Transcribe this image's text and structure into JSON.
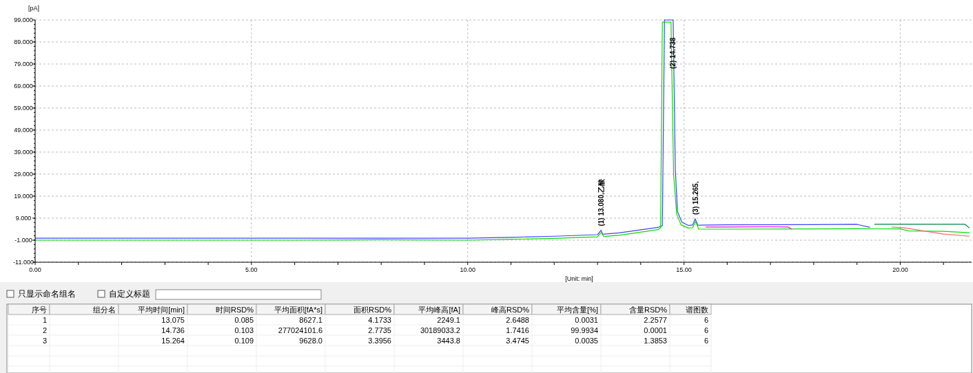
{
  "chart_data": [
    {
      "type": "line",
      "xlabel": "[Unit: min]",
      "ylabel": "[pA]",
      "series": [
        {
          "color": "#4040ff",
          "x": [
            0,
            2,
            4,
            6,
            8,
            10,
            11,
            12,
            13,
            13.05,
            13.08,
            13.12,
            13.5,
            14.4,
            14.5,
            14.55,
            14.75,
            14.8,
            14.85,
            14.95,
            15.1,
            15.2,
            15.26,
            15.32,
            16,
            18,
            19,
            19.3
          ],
          "values": [
            -0.1,
            -0.1,
            -0.1,
            -0.1,
            -0.1,
            -0.1,
            0.3,
            0.8,
            1.5,
            2.6,
            3.5,
            1.7,
            2.3,
            4.8,
            5.6,
            99,
            99,
            31,
            12,
            7.2,
            5.7,
            5.9,
            8.7,
            5.8,
            6.0,
            6.1,
            6.2,
            4.8
          ]
        },
        {
          "color": "#00e000",
          "x": [
            0,
            2,
            4,
            6,
            8,
            10,
            11,
            12,
            13,
            13.05,
            13.09,
            13.14,
            13.5,
            14.4,
            14.46,
            14.5,
            14.7,
            14.76,
            14.83,
            14.93,
            15.1,
            15.2,
            15.27,
            15.34,
            16,
            18,
            19,
            20,
            20.2,
            21,
            21.6
          ],
          "values": [
            -1.0,
            -1.0,
            -1.0,
            -1.0,
            -0.8,
            -1.0,
            -0.6,
            -0.2,
            0.5,
            1.6,
            2.5,
            0.7,
            1.2,
            3.8,
            4.6,
            98,
            98,
            29,
            11,
            6,
            4.5,
            4.7,
            7.6,
            4.0,
            4.0,
            4.1,
            4.2,
            4.1,
            3.2,
            3.0,
            2.4
          ]
        },
        {
          "color": "#ff00ff",
          "x": [
            15.5,
            16,
            17,
            17.4,
            17.5
          ],
          "values": [
            5.0,
            5.0,
            5.1,
            5.0,
            4.0
          ]
        },
        {
          "color": "#008040",
          "x": [
            19.4,
            20,
            21,
            21.5,
            21.6
          ],
          "values": [
            6.2,
            6.2,
            6.2,
            6.2,
            4.5
          ]
        },
        {
          "color": "#ff6666",
          "x": [
            19.8,
            20.1,
            21,
            21.6
          ],
          "values": [
            5.0,
            4.6,
            1.8,
            0.8
          ]
        }
      ],
      "xlim": [
        0,
        21.65
      ],
      "xticks": [
        {
          "value": 0,
          "label": "0.00"
        },
        {
          "value": 1,
          "label": null
        },
        {
          "value": 2,
          "label": null
        },
        {
          "value": 3,
          "label": null
        },
        {
          "value": 4,
          "label": null
        },
        {
          "value": 5,
          "label": "5.00"
        },
        {
          "value": 6,
          "label": null
        },
        {
          "value": 7,
          "label": null
        },
        {
          "value": 8,
          "label": null
        },
        {
          "value": 9,
          "label": null
        },
        {
          "value": 10,
          "label": "10.00"
        },
        {
          "value": 11,
          "label": null
        },
        {
          "value": 12,
          "label": null
        },
        {
          "value": 13,
          "label": null
        },
        {
          "value": 14,
          "label": null
        },
        {
          "value": 15,
          "label": "15.00"
        },
        {
          "value": 16,
          "label": null
        },
        {
          "value": 17,
          "label": null
        },
        {
          "value": 18,
          "label": null
        },
        {
          "value": 19,
          "label": null
        },
        {
          "value": 20,
          "label": "20.00"
        },
        {
          "value": 21,
          "label": null
        }
      ],
      "ylim": [
        -11,
        99
      ],
      "yticks": [
        {
          "value": -11,
          "label": "-11.000"
        },
        {
          "value": -1,
          "label": "-1.000"
        },
        {
          "value": 9,
          "label": "9.000"
        },
        {
          "value": 19,
          "label": "19.000"
        },
        {
          "value": 29,
          "label": "29.000"
        },
        {
          "value": 39,
          "label": "39.000"
        },
        {
          "value": 49,
          "label": "49.000"
        },
        {
          "value": 59,
          "label": "59.000"
        },
        {
          "value": 69,
          "label": "69.000"
        },
        {
          "value": 79,
          "label": "79.000"
        },
        {
          "value": 89,
          "label": "89.000"
        },
        {
          "value": 99,
          "label": "99.000"
        }
      ],
      "grid": true,
      "annotations": [
        {
          "text": "(1) 13.080,乙酸",
          "x": 13.08,
          "y": 3.5
        },
        {
          "text": "(2) 14.738",
          "x": 14.738,
          "y": 99
        },
        {
          "text": "(3) 15.265,",
          "x": 15.265,
          "y": 8.7
        }
      ]
    },
    {
      "type": "other",
      "annotations": [
        "只显示命名组名",
        "自定义标题"
      ],
      "categories": [
        "序号",
        "组分名",
        "平均时间[min]",
        "时间RSD%",
        "平均面积[fA*s]",
        "面积RSD%",
        "平均峰高[fA]",
        "峰高RSD%",
        "平均含量[%]",
        "含量RSD%",
        "谱图数"
      ],
      "cell_labels": [
        [
          "1",
          null,
          "13.075",
          "0.085",
          "8627.1",
          "4.1733",
          "2249.1",
          "2.6488",
          "0.0031",
          "2.2577",
          "6"
        ],
        [
          "2",
          null,
          "14.736",
          "0.103",
          "277024101.6",
          "2.7735",
          "30189033.2",
          "1.7416",
          "99.9934",
          "0.0001",
          "6"
        ],
        [
          "3",
          null,
          "15.264",
          "0.109",
          "9628.0",
          "3.3956",
          "3443.8",
          "3.4745",
          "0.0035",
          "1.3853",
          "6"
        ]
      ]
    }
  ]
}
